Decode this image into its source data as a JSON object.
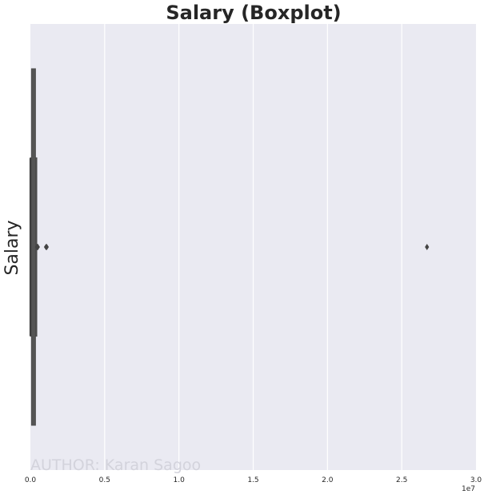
{
  "chart_data": {
    "type": "boxplot",
    "title": "Salary (Boxplot)",
    "xlabel": "",
    "ylabel": "Salary",
    "xlim": [
      0,
      30000000
    ],
    "x_ticks": [
      0,
      5000000,
      10000000,
      15000000,
      20000000,
      25000000,
      30000000
    ],
    "x_tick_labels": [
      "0.0",
      "0.5",
      "1.0",
      "1.5",
      "2.0",
      "2.5",
      "3.0"
    ],
    "x_offset_label": "1e7",
    "orientation": "horizontal",
    "grid": true,
    "box": {
      "min": 0,
      "q1": 20000,
      "median": 100000,
      "q3": 400000,
      "max": 400000,
      "outliers": [
        450000,
        470000,
        490000,
        500000,
        1050000,
        1100000,
        26700000
      ]
    },
    "colors": {
      "background": "#eaeaf2",
      "grid": "#ffffff",
      "box_stroke": "#4d4d4d",
      "whisker": "#3d3d3d",
      "outlier": "#444444"
    }
  },
  "watermark": "AUTHOR: Karan Sagoo"
}
